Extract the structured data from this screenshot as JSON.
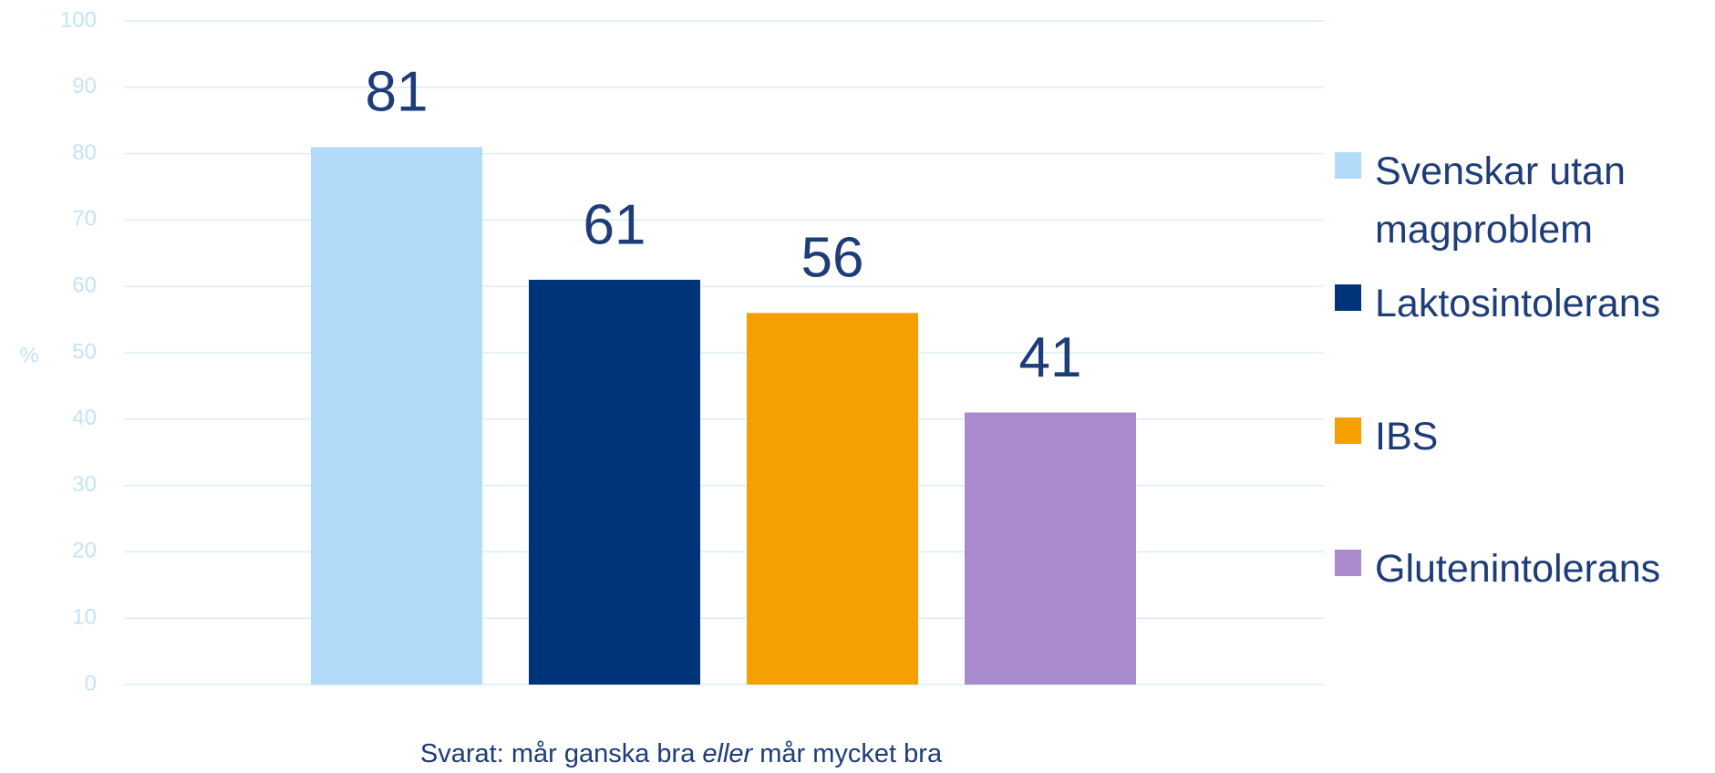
{
  "chart_data": {
    "type": "bar",
    "categories": [
      null
    ],
    "series": [
      {
        "name": "Svenskar utan magproblem",
        "color": "#b1dbf8",
        "values": [
          81
        ]
      },
      {
        "name": "Laktosintolerans",
        "color": "#003478",
        "values": [
          61
        ]
      },
      {
        "name": "IBS",
        "color": "#f5a000",
        "values": [
          56
        ]
      },
      {
        "name": "Glutenintolerans",
        "color": "#a98bcd",
        "values": [
          41
        ]
      }
    ],
    "ylabel": "%",
    "x_label": [
      "Svarat: mår ganska bra",
      "eller",
      "mår mycket bra"
    ],
    "ylim": [
      0,
      100
    ],
    "yticks": [
      0,
      10,
      20,
      30,
      40,
      50,
      60,
      70,
      80,
      90,
      100
    ],
    "grid": true,
    "legend": "right"
  }
}
